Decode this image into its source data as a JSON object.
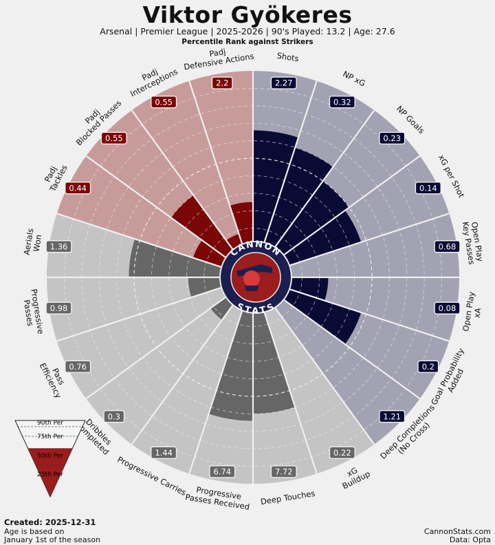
{
  "header": {
    "title": "Viktor Gyökeres",
    "subtitle": "Arsenal  | Premier League | 2025-2026 | 90's Played: 13.2 | Age: 27.6",
    "rank_label": "Percentile Rank against Strikers"
  },
  "logo": {
    "top": "CANNON",
    "bottom": "STATS"
  },
  "legend": {
    "p90": "90th Per",
    "p75": "75th Per",
    "p50": "50th Per",
    "p25": "25th Per"
  },
  "footer": {
    "created": "Created: 2025-12-31",
    "age_note_1": "Age is based on",
    "age_note_2": "January 1st of the season",
    "site": "CannonStats.com",
    "source": "Data: Opta"
  },
  "colors": {
    "attack_bg": "#a3a2b2",
    "attack_bar": "#0a0b35",
    "possession_bg": "#c4c4c4",
    "possession_bar": "#666666",
    "defense_bg": "#c89b9b",
    "defense_bar": "#7b0606"
  },
  "chart_data": {
    "type": "pie",
    "subtype": "radial-bar",
    "radial_axis": "percentile",
    "rlim": [
      0,
      100
    ],
    "segments": [
      {
        "label": [
          "Shots"
        ],
        "value": "2.27",
        "percentile": 66,
        "group": "attack"
      },
      {
        "label": [
          "NP xG"
        ],
        "value": "0.32",
        "percentile": 60,
        "group": "attack"
      },
      {
        "label": [
          "NP Goals"
        ],
        "value": "0.23",
        "percentile": 50,
        "group": "attack"
      },
      {
        "label": [
          "xG per Shot"
        ],
        "value": "0.14",
        "percentile": 47,
        "group": "attack"
      },
      {
        "label": [
          "Open Play",
          "Key Passes"
        ],
        "value": "0.68",
        "percentile": 0,
        "group": "attack"
      },
      {
        "label": [
          "Open Play",
          "xA"
        ],
        "value": "0.08",
        "percentile": 25,
        "group": "attack"
      },
      {
        "label": [
          "Goal Probability",
          "Added"
        ],
        "value": "0.2",
        "percentile": 47,
        "group": "attack"
      },
      {
        "label": [
          "Deep Completions",
          "(No Cross)"
        ],
        "value": "1.21",
        "percentile": 0,
        "group": "attack"
      },
      {
        "label": [
          "xG",
          "Buildup"
        ],
        "value": "0.22",
        "percentile": 0,
        "group": "possession"
      },
      {
        "label": [
          "Deep Touches"
        ],
        "value": "7.72",
        "percentile": 60,
        "group": "possession"
      },
      {
        "label": [
          "Progressive",
          "Passes Received"
        ],
        "value": "6.74",
        "percentile": 64,
        "group": "possession"
      },
      {
        "label": [
          "Progressive Carries"
        ],
        "value": "1.44",
        "percentile": 0,
        "group": "possession"
      },
      {
        "label": [
          "Dribbles",
          "Completed"
        ],
        "value": "0.3",
        "percentile": 12,
        "group": "possession"
      },
      {
        "label": [
          "Pass",
          "Efficiency"
        ],
        "value": "0.76",
        "percentile": 0,
        "group": "possession"
      },
      {
        "label": [
          "Progressive",
          "Passes"
        ],
        "value": "0.98",
        "percentile": 19,
        "group": "possession"
      },
      {
        "label": [
          "Aerials",
          "Won"
        ],
        "value": "1.36",
        "percentile": 53,
        "group": "possession"
      },
      {
        "label": [
          "Padj",
          "Tackles"
        ],
        "value": "0.44",
        "percentile": 18,
        "group": "defense"
      },
      {
        "label": [
          "Padj",
          "Blocked Passes"
        ],
        "value": "0.55",
        "percentile": 40,
        "group": "defense"
      },
      {
        "label": [
          "Padj",
          "Interceptions"
        ],
        "value": "0.55",
        "percentile": 8,
        "group": "defense"
      },
      {
        "label": [
          "Padj",
          "Defensive Actions"
        ],
        "value": "2.2",
        "percentile": 25,
        "group": "defense"
      }
    ]
  }
}
